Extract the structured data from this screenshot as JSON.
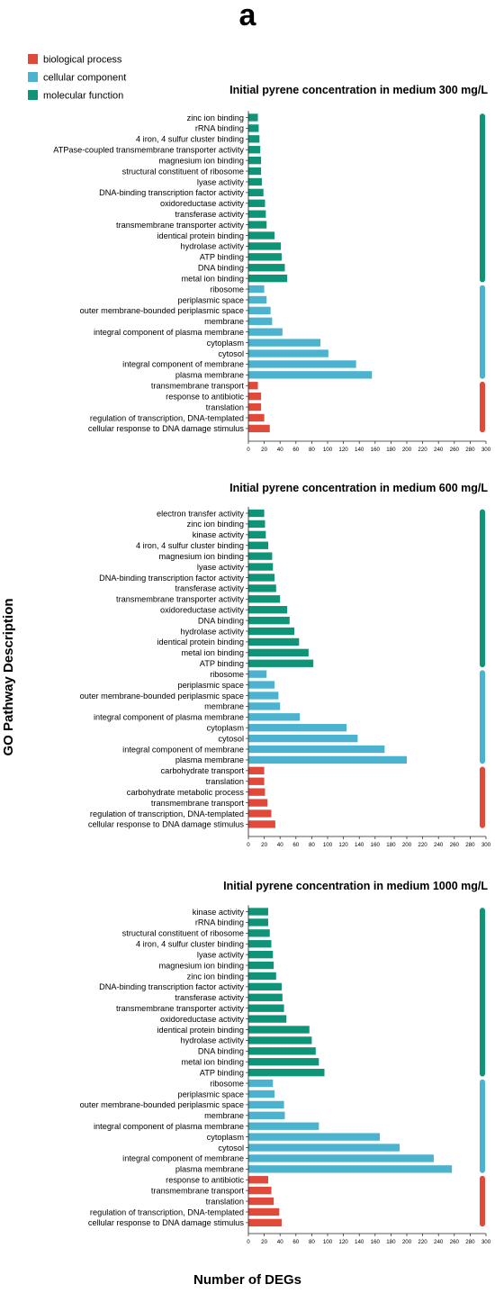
{
  "panel_label": "a",
  "colors": {
    "biological process": "#e04a3a",
    "cellular component": "#4bb3cf",
    "molecular function": "#0f9477"
  },
  "legend": [
    {
      "label": "biological process",
      "color": "#e04a3a"
    },
    {
      "label": "cellular component",
      "color": "#4bb3cf"
    },
    {
      "label": "molecular function",
      "color": "#0f9477"
    }
  ],
  "axis": {
    "ylabel": "GO Pathway Description",
    "xlabel": "Number of DEGs",
    "xlim": [
      0,
      300
    ],
    "xticks": [
      "0",
      "20",
      "40",
      "60",
      "80",
      "100",
      "120",
      "140",
      "160",
      "180",
      "200",
      "220",
      "240",
      "260",
      "280",
      "300"
    ]
  },
  "chart_data": [
    {
      "type": "bar",
      "orientation": "horizontal",
      "title": "Initial pyrene concentration in medium 300 mg/L",
      "xlim": [
        0,
        300
      ],
      "categories": [
        "zinc ion binding",
        "rRNA binding",
        "4 iron, 4 sulfur cluster binding",
        "ATPase-coupled transmembrane transporter activity",
        "magnesium ion binding",
        "structural constituent of ribosome",
        "lyase activity",
        "DNA-binding transcription factor activity",
        "oxidoreductase activity",
        "transferase activity",
        "transmembrane transporter activity",
        "identical protein binding",
        "hydrolase activity",
        "ATP binding",
        "DNA binding",
        "metal ion binding",
        "ribosome",
        "periplasmic space",
        "outer membrane-bounded periplasmic space",
        "membrane",
        "integral component of plasma membrane",
        "cytoplasm",
        "cytosol",
        "integral component of membrane",
        "plasma membrane",
        "transmembrane transport",
        "response to antibiotic",
        "translation",
        "regulation of transcription, DNA-templated",
        "cellular response to DNA damage stimulus"
      ],
      "values": [
        12,
        13,
        14,
        15,
        16,
        16,
        17,
        19,
        21,
        22,
        23,
        33,
        41,
        42,
        46,
        49,
        20,
        23,
        28,
        30,
        43,
        91,
        101,
        136,
        156,
        12,
        16,
        16,
        20,
        27
      ],
      "groups": [
        "molecular function",
        "molecular function",
        "molecular function",
        "molecular function",
        "molecular function",
        "molecular function",
        "molecular function",
        "molecular function",
        "molecular function",
        "molecular function",
        "molecular function",
        "molecular function",
        "molecular function",
        "molecular function",
        "molecular function",
        "molecular function",
        "cellular component",
        "cellular component",
        "cellular component",
        "cellular component",
        "cellular component",
        "cellular component",
        "cellular component",
        "cellular component",
        "cellular component",
        "biological process",
        "biological process",
        "biological process",
        "biological process",
        "biological process"
      ]
    },
    {
      "type": "bar",
      "orientation": "horizontal",
      "title": "Initial pyrene concentration in medium 600 mg/L",
      "xlim": [
        0,
        300
      ],
      "categories": [
        "electron transfer activity",
        "zinc ion binding",
        "kinase activity",
        "4 iron, 4 sulfur cluster binding",
        "magnesium ion binding",
        "lyase activity",
        "DNA-binding transcription factor activity",
        "transferase activity",
        "transmembrane transporter activity",
        "oxidoreductase activity",
        "DNA binding",
        "hydrolase activity",
        "identical protein binding",
        "metal ion binding",
        "ATP binding",
        "ribosome",
        "periplasmic space",
        "outer membrane-bounded periplasmic space",
        "membrane",
        "integral component of plasma membrane",
        "cytoplasm",
        "cytosol",
        "integral component of membrane",
        "plasma membrane",
        "carbohydrate transport",
        "translation",
        "carbohydrate metabolic process",
        "transmembrane transport",
        "regulation of transcription, DNA-templated",
        "cellular response to DNA damage stimulus"
      ],
      "values": [
        20,
        21,
        22,
        25,
        30,
        31,
        33,
        35,
        40,
        49,
        52,
        58,
        64,
        76,
        82,
        23,
        33,
        38,
        40,
        65,
        124,
        138,
        172,
        200,
        20,
        20,
        21,
        24,
        29,
        34
      ],
      "groups": [
        "molecular function",
        "molecular function",
        "molecular function",
        "molecular function",
        "molecular function",
        "molecular function",
        "molecular function",
        "molecular function",
        "molecular function",
        "molecular function",
        "molecular function",
        "molecular function",
        "molecular function",
        "molecular function",
        "molecular function",
        "cellular component",
        "cellular component",
        "cellular component",
        "cellular component",
        "cellular component",
        "cellular component",
        "cellular component",
        "cellular component",
        "cellular component",
        "biological process",
        "biological process",
        "biological process",
        "biological process",
        "biological process",
        "biological process"
      ]
    },
    {
      "type": "bar",
      "orientation": "horizontal",
      "title": "Initial pyrene concentration in medium 1000 mg/L",
      "xlim": [
        0,
        300
      ],
      "categories": [
        "kinase activity",
        "rRNA binding",
        "structural constituent of ribosome",
        "4 iron, 4 sulfur cluster binding",
        "lyase activity",
        "magnesium ion binding",
        "zinc ion binding",
        "DNA-binding transcription factor activity",
        "transferase activity",
        "transmembrane transporter activity",
        "oxidoreductase activity",
        "identical protein binding",
        "hydrolase activity",
        "DNA binding",
        "metal ion binding",
        "ATP binding",
        "ribosome",
        "periplasmic space",
        "outer membrane-bounded periplasmic space",
        "membrane",
        "integral component of plasma membrane",
        "cytoplasm",
        "cytosol",
        "integral component of membrane",
        "plasma membrane",
        "response to antibiotic",
        "transmembrane transport",
        "translation",
        "regulation of transcription, DNA-templated",
        "cellular response to DNA damage stimulus"
      ],
      "values": [
        25,
        25,
        27,
        29,
        31,
        32,
        35,
        42,
        43,
        45,
        48,
        77,
        80,
        85,
        89,
        96,
        31,
        33,
        45,
        46,
        89,
        166,
        191,
        234,
        257,
        25,
        29,
        32,
        39,
        42
      ],
      "groups": [
        "molecular function",
        "molecular function",
        "molecular function",
        "molecular function",
        "molecular function",
        "molecular function",
        "molecular function",
        "molecular function",
        "molecular function",
        "molecular function",
        "molecular function",
        "molecular function",
        "molecular function",
        "molecular function",
        "molecular function",
        "molecular function",
        "cellular component",
        "cellular component",
        "cellular component",
        "cellular component",
        "cellular component",
        "cellular component",
        "cellular component",
        "cellular component",
        "cellular component",
        "biological process",
        "biological process",
        "biological process",
        "biological process",
        "biological process"
      ]
    }
  ]
}
